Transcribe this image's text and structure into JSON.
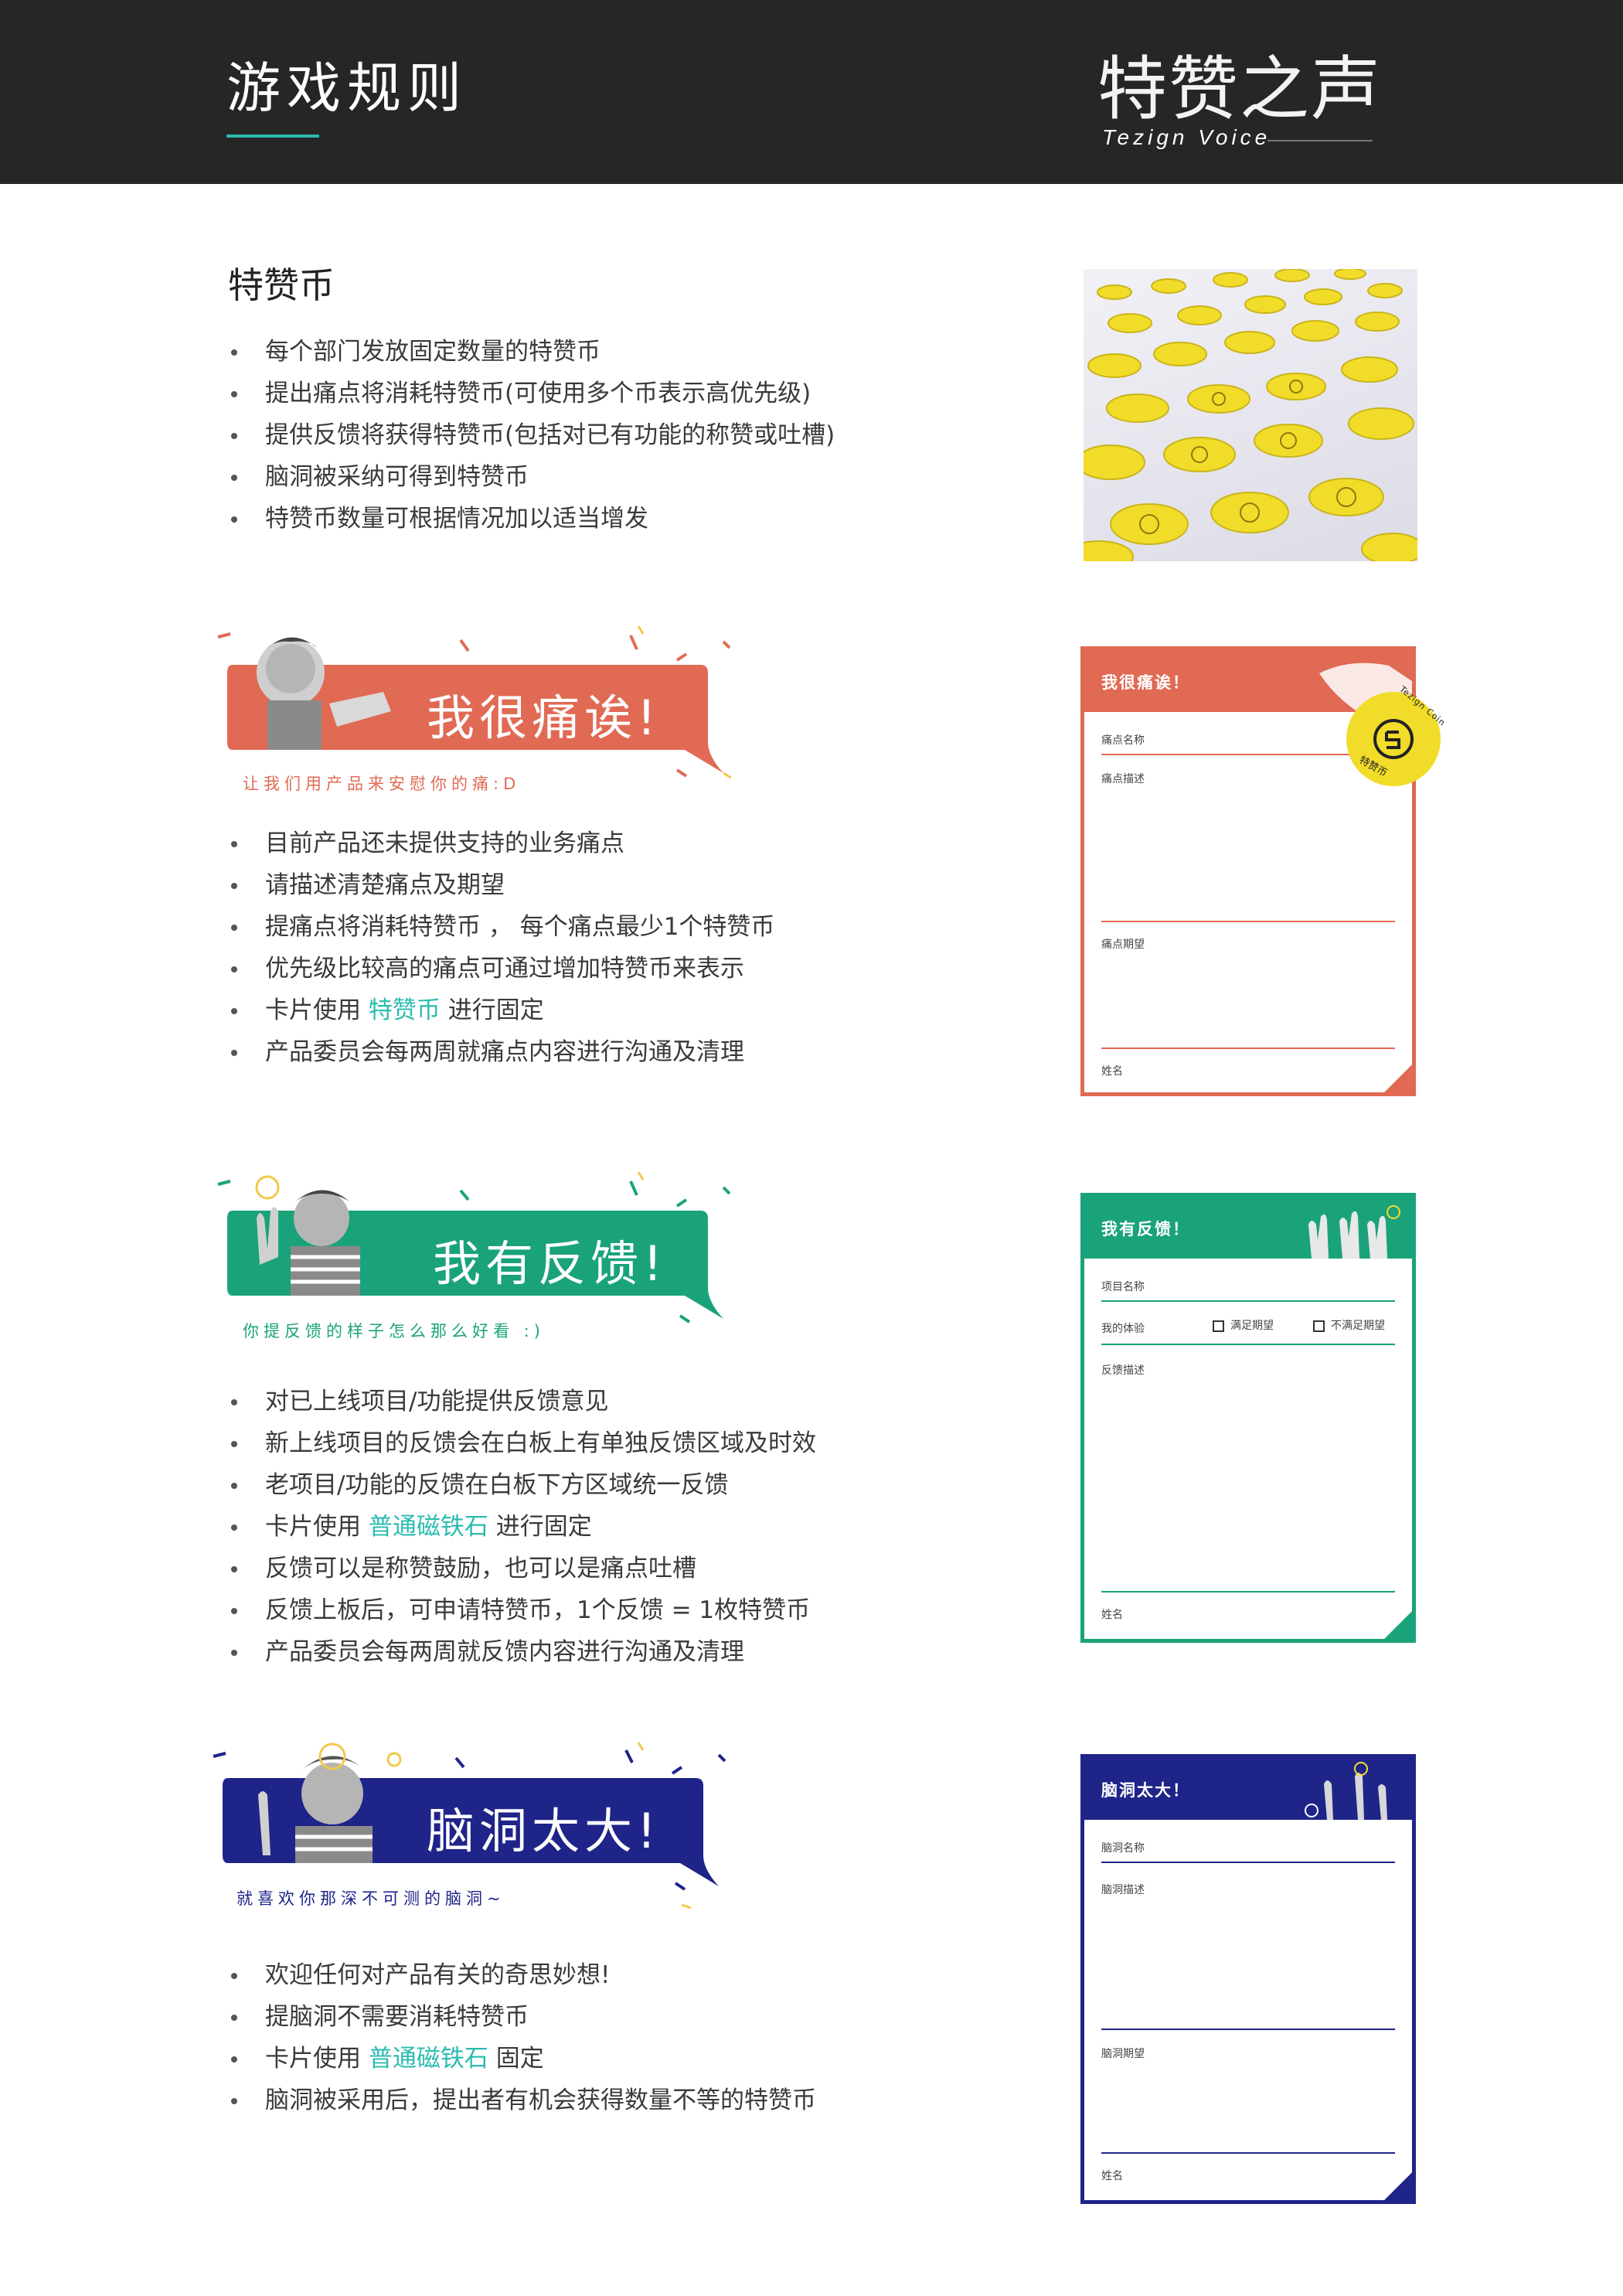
{
  "header": {
    "title": "游戏规则",
    "logo_cn": "特赞之声",
    "logo_en": "Tezign Voice"
  },
  "colors": {
    "header_bg": "#262626",
    "accent_teal": "#2bbcb0",
    "pain_red": "#e06a54",
    "feedback_green": "#1aa37a",
    "idea_navy": "#1f2489",
    "coin_yellow": "#f2dc2a"
  },
  "coins_section": {
    "heading": "特赞币",
    "items": [
      "每个部门发放固定数量的特赞币",
      "提出痛点将消耗特赞币(可使用多个币表示高优先级)",
      "提供反馈将获得特赞币(包括对已有功能的称赞或吐槽)",
      "脑洞被采纳可得到特赞币",
      "特赞币数量可根据情况加以适当增发"
    ]
  },
  "pain_section": {
    "banner_title": "我很痛诶!",
    "banner_subtitle": "让我们用产品来安慰你的痛:D",
    "items": [
      {
        "text": "目前产品还未提供支持的业务痛点"
      },
      {
        "text": "请描述清楚痛点及期望"
      },
      {
        "text": "提痛点将消耗特赞币 ， 每个痛点最少1个特赞币"
      },
      {
        "text": "优先级比较高的痛点可通过增加特赞币来表示"
      },
      {
        "pre": "卡片使用 ",
        "hl": "特赞币",
        "post": " 进行固定"
      },
      {
        "text": "产品委员会每两周就痛点内容进行沟通及清理"
      }
    ],
    "card": {
      "title": "我很痛诶！",
      "field1": "痛点名称",
      "field2": "痛点描述",
      "field3": "痛点期望",
      "field4": "姓名",
      "coin_label_top": "Tezign Coin",
      "coin_label_bottom": "特赞币"
    }
  },
  "feedback_section": {
    "banner_title": "我有反馈!",
    "banner_subtitle": "你提反馈的样子怎么那么好看 :)",
    "items": [
      {
        "text": "对已上线项目/功能提供反馈意见"
      },
      {
        "text": "新上线项目的反馈会在白板上有单独反馈区域及时效"
      },
      {
        "text": "老项目/功能的反馈在白板下方区域统一反馈"
      },
      {
        "pre": "卡片使用 ",
        "hl": "普通磁铁石",
        "post": " 进行固定"
      },
      {
        "text": "反馈可以是称赞鼓励，也可以是痛点吐槽"
      },
      {
        "text": "反馈上板后，可申请特赞币，1个反馈 = 1枚特赞币"
      },
      {
        "text": "产品委员会每两周就反馈内容进行沟通及清理"
      }
    ],
    "card": {
      "title": "我有反馈！",
      "field1": "项目名称",
      "field2": "我的体验",
      "opt1": "满足期望",
      "opt2": "不满足期望",
      "field3": "反馈描述",
      "field4": "姓名"
    }
  },
  "idea_section": {
    "banner_title": "脑洞太大!",
    "banner_subtitle": "就喜欢你那深不可测的脑洞~",
    "items": [
      {
        "text": "欢迎任何对产品有关的奇思妙想!"
      },
      {
        "text": "提脑洞不需要消耗特赞币"
      },
      {
        "pre": "卡片使用 ",
        "hl": "普通磁铁石",
        "post": " 固定"
      },
      {
        "text": "脑洞被采用后，提出者有机会获得数量不等的特赞币"
      }
    ],
    "card": {
      "title": "脑洞太大！",
      "field1": "脑洞名称",
      "field2": "脑洞描述",
      "field3": "脑洞期望",
      "field4": "姓名"
    }
  }
}
